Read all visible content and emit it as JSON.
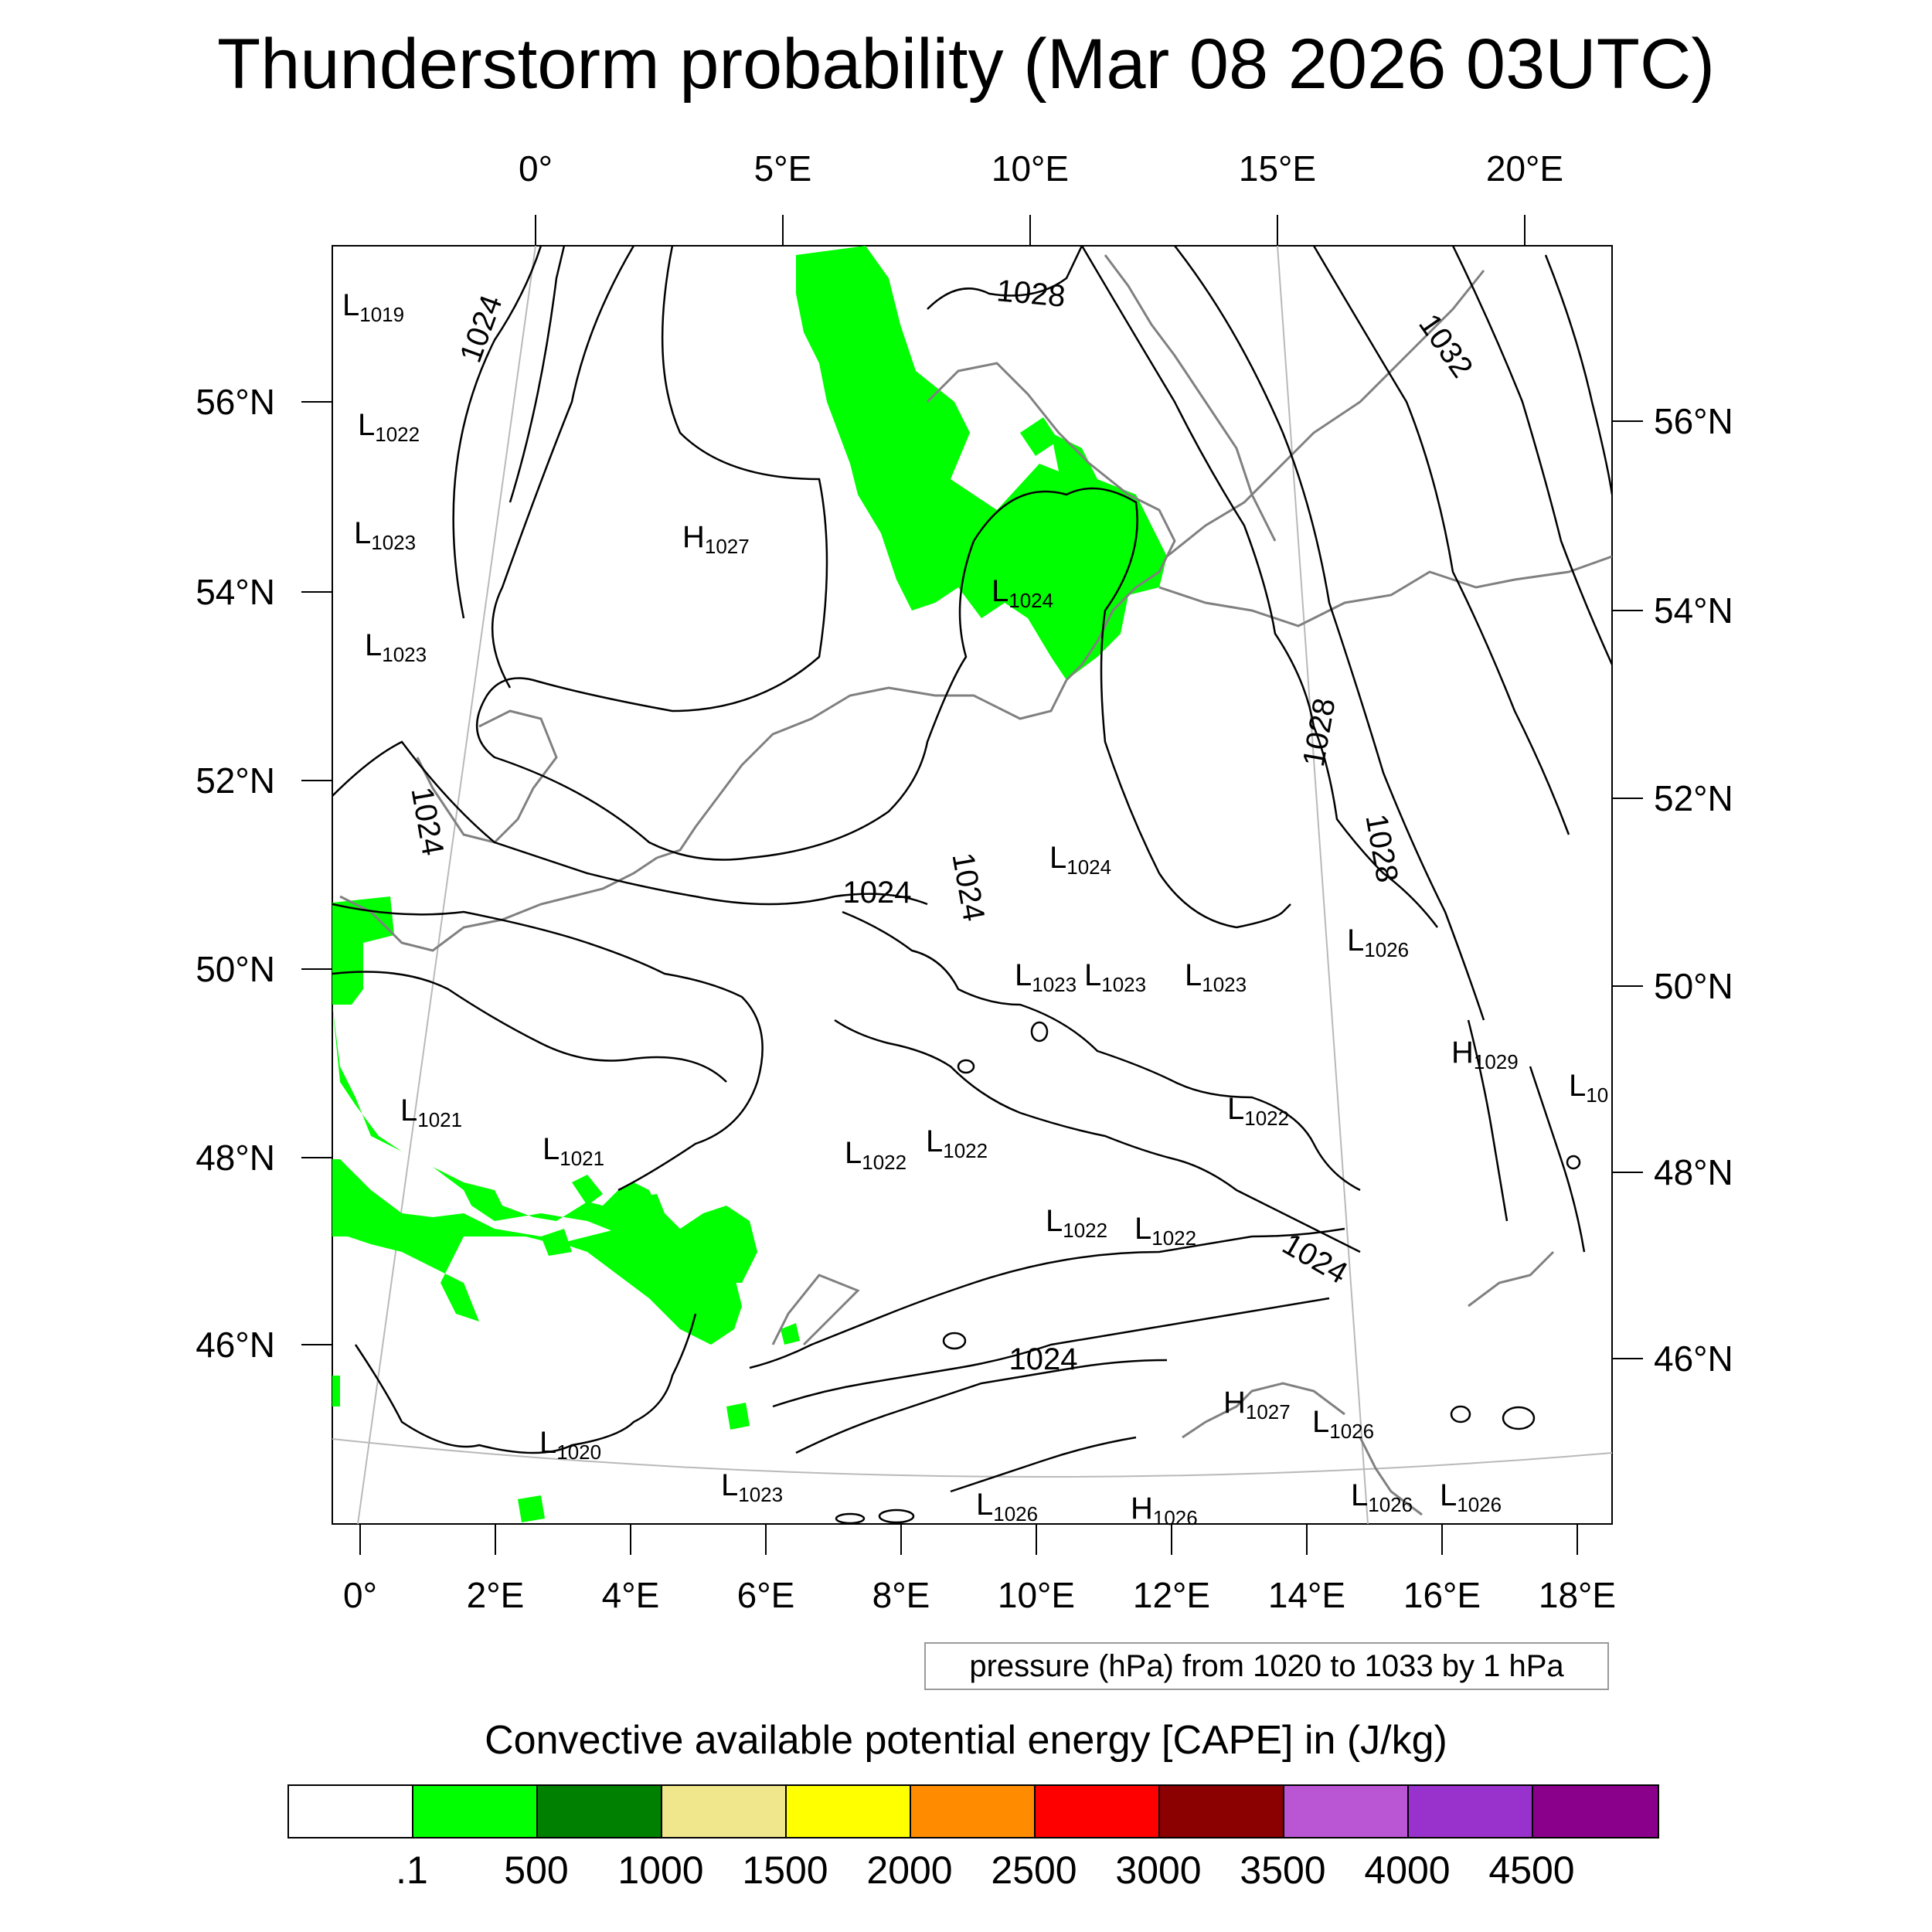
{
  "title": "Thunderstorm probability (Mar 08 2026 03UTC)",
  "top_axis": [
    "0°",
    "5°E",
    "10°E",
    "15°E",
    "20°E"
  ],
  "bottom_axis": [
    "0°",
    "2°E",
    "4°E",
    "6°E",
    "8°E",
    "10°E",
    "12°E",
    "14°E",
    "16°E",
    "18°E"
  ],
  "left_axis": [
    "56°N",
    "54°N",
    "52°N",
    "50°N",
    "48°N",
    "46°N"
  ],
  "right_axis": [
    "56°N",
    "54°N",
    "52°N",
    "50°N",
    "48°N",
    "46°N"
  ],
  "pressure_centers": [
    {
      "type": "L",
      "value": "1019"
    },
    {
      "type": "L",
      "value": "1022"
    },
    {
      "type": "L",
      "value": "1023"
    },
    {
      "type": "L",
      "value": "1023"
    },
    {
      "type": "H",
      "value": "1027"
    },
    {
      "type": "L",
      "value": "1024"
    },
    {
      "type": "L",
      "value": "1024"
    },
    {
      "type": "L",
      "value": "1021"
    },
    {
      "type": "L",
      "value": "1021"
    },
    {
      "type": "L",
      "value": "1022"
    },
    {
      "type": "L",
      "value": "1022"
    },
    {
      "type": "L",
      "value": "1023"
    },
    {
      "type": "L",
      "value": "1023"
    },
    {
      "type": "L",
      "value": "1023"
    },
    {
      "type": "L",
      "value": "1026"
    },
    {
      "type": "H",
      "value": "1029"
    },
    {
      "type": "L",
      "value": "10"
    },
    {
      "type": "L",
      "value": "1022"
    },
    {
      "type": "L",
      "value": "1022"
    },
    {
      "type": "L",
      "value": "1022"
    },
    {
      "type": "L",
      "value": "1020"
    },
    {
      "type": "L",
      "value": "1023"
    },
    {
      "type": "L",
      "value": "1026"
    },
    {
      "type": "H",
      "value": "1026"
    },
    {
      "type": "H",
      "value": "1027"
    },
    {
      "type": "L",
      "value": "1026"
    },
    {
      "type": "L",
      "value": "1026"
    },
    {
      "type": "L",
      "value": "1026"
    }
  ],
  "contour_labels": [
    "1024",
    "1028",
    "1032",
    "1024",
    "1024",
    "1024",
    "1028",
    "1028",
    "1024",
    "1024"
  ],
  "contour_note": "pressure (hPa) from 1020 to 1033 by 1 hPa",
  "colorbar": {
    "title": "Convective available potential energy [CAPE] in (J/kg)",
    "colors": [
      "#ffffff",
      "#00ff00",
      "#008000",
      "#f0e68c",
      "#ffff00",
      "#ff8c00",
      "#ff0000",
      "#8b0000",
      "#ba55d3",
      "#9932cc",
      "#8b008b"
    ],
    "ticks": [
      ".1",
      "500",
      "1000",
      "1500",
      "2000",
      "2500",
      "3000",
      "3500",
      "4000",
      "4500"
    ]
  },
  "colors": {
    "cape_low": "#00ff00",
    "contour": "#000000",
    "coastline": "#808080",
    "graticule": "#b0b0b0"
  }
}
